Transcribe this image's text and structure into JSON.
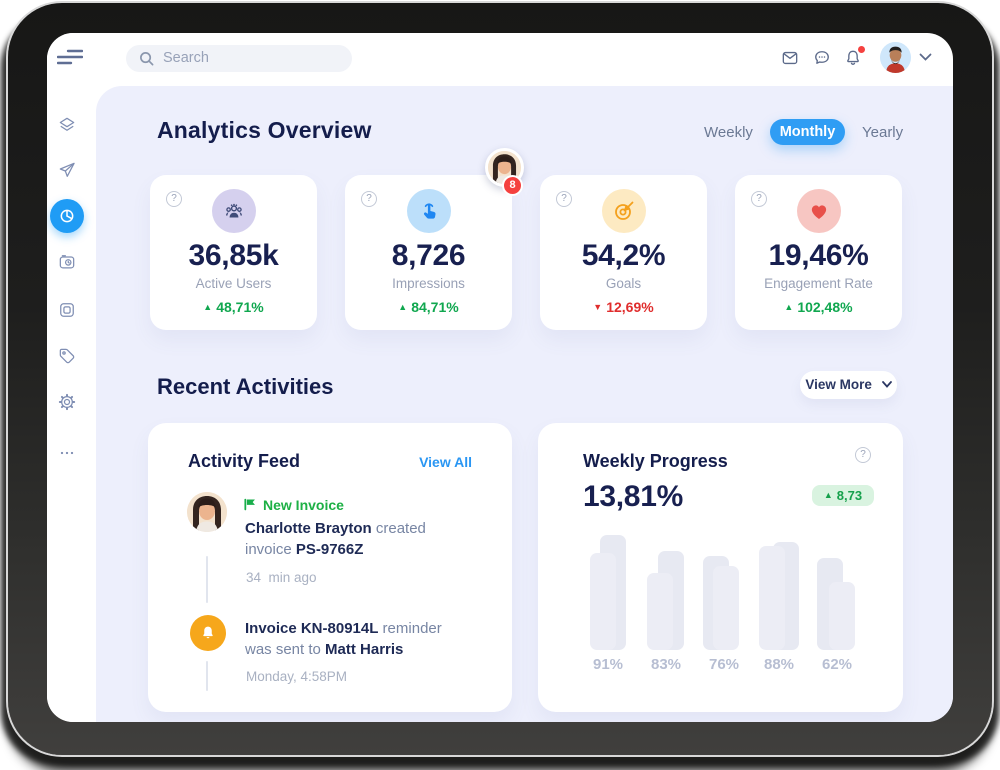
{
  "colors": {
    "accent_blue": "#2f9df4",
    "up_green": "#10a74f",
    "down_red": "#e02d2d",
    "badge_red": "#f5413f",
    "content_bg": "#edeffc",
    "navy_text": "#141d4c"
  },
  "topbar": {
    "search_placeholder": "Search"
  },
  "sidebar": {
    "icons": [
      "menu",
      "layers",
      "send",
      "pie-chart",
      "camera",
      "window",
      "tag",
      "settings",
      "more"
    ],
    "active_icon": "pie-chart"
  },
  "analytics": {
    "title": "Analytics Overview",
    "tabs": [
      {
        "label": "Weekly",
        "active": false
      },
      {
        "label": "Monthly",
        "active": true
      },
      {
        "label": "Yearly",
        "active": false
      }
    ],
    "avatar_badge": "8",
    "stats": [
      {
        "icon": "users",
        "value": "36,85k",
        "label": "Active Users",
        "arrow": "▲",
        "change": "48,71%",
        "direction": "up"
      },
      {
        "icon": "tap",
        "value": "8,726",
        "label": "Impressions",
        "arrow": "▲",
        "change": "84,71%",
        "direction": "up"
      },
      {
        "icon": "target",
        "value": "54,2%",
        "label": "Goals",
        "arrow": "▼",
        "change": "12,69%",
        "direction": "down"
      },
      {
        "icon": "heart",
        "value": "19,46%",
        "label": "Engagement Rate",
        "arrow": "▲",
        "change": "102,48%",
        "direction": "up"
      }
    ]
  },
  "recent": {
    "title": "Recent Activities",
    "view_more": "View More"
  },
  "activity_feed": {
    "title": "Activity Feed",
    "view_all": "View All",
    "items": [
      {
        "badge": "New Invoice",
        "l1_bold": "Charlotte Brayton",
        "l1_rest": " created",
        "l2_pre": "invoice ",
        "l2_bold": "PS-9766Z",
        "time": "34  min ago"
      },
      {
        "l1_bold": "Invoice KN-80914L",
        "l1_rest": " reminder",
        "l2_pre": "was sent to ",
        "l2_bold": "Matt Harris",
        "time": "Monday, 4:58PM"
      }
    ]
  },
  "weekly_progress": {
    "title": "Weekly Progress",
    "value": "13,81%",
    "arrow": "▲",
    "change": "8,73"
  },
  "chart_data": {
    "type": "bar",
    "title": "Weekly Progress",
    "categories": [
      "91%",
      "83%",
      "76%",
      "88%",
      "62%"
    ],
    "series": [
      {
        "name": "back",
        "values": [
          115,
          99,
          94,
          108,
          92
        ]
      },
      {
        "name": "front",
        "values": [
          97,
          77,
          84,
          104,
          68
        ]
      }
    ],
    "unit": "px",
    "ylim": [
      0,
      140
    ],
    "grid": false,
    "legend": false
  }
}
